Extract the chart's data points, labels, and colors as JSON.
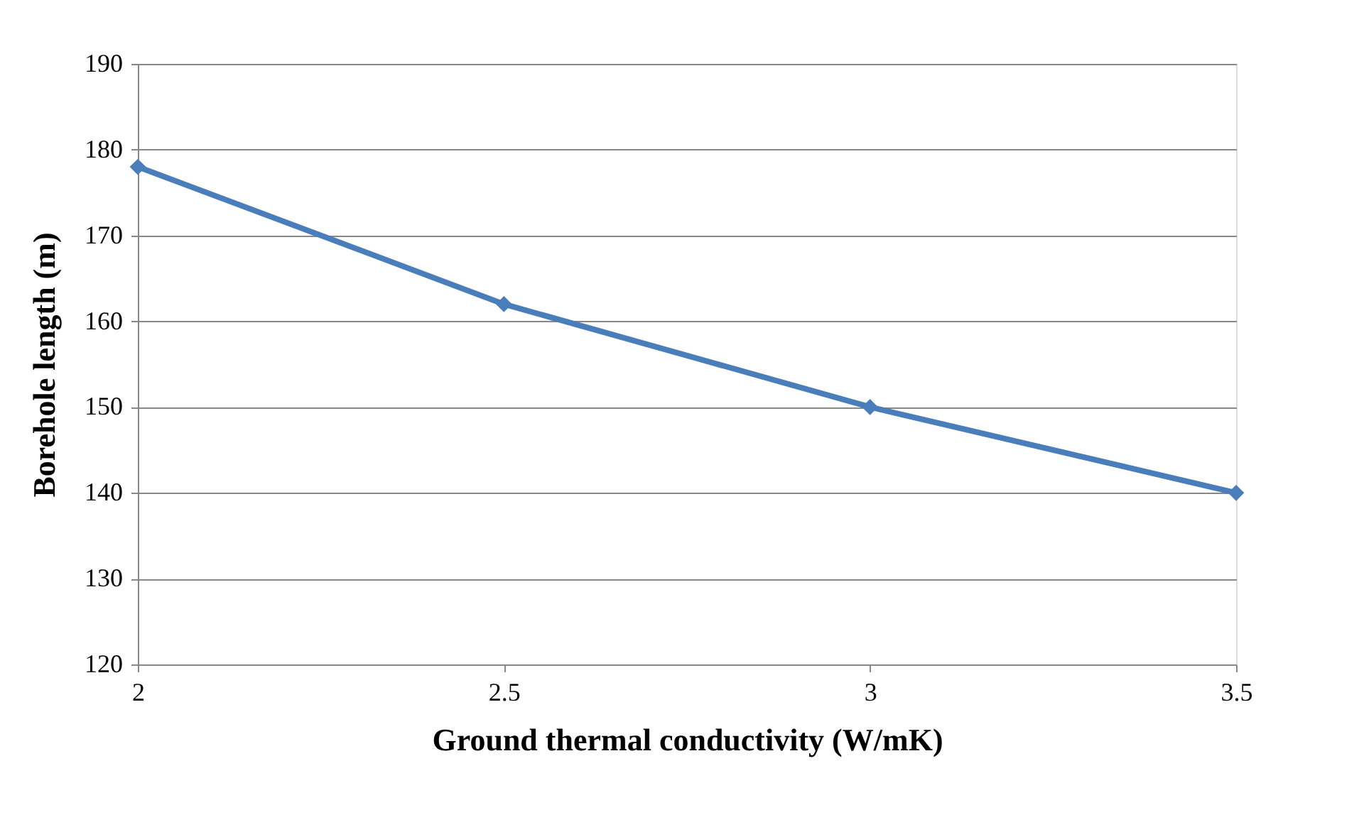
{
  "chart_data": {
    "type": "line",
    "xlabel": "Ground thermal conductivity (W/mK)",
    "ylabel": "Borehole length (m)",
    "x": [
      2,
      2.5,
      3,
      3.5
    ],
    "series": [
      {
        "color": "#4a7ebb",
        "values": [
          178,
          162,
          150,
          140
        ]
      }
    ],
    "xlim": [
      2,
      3.5
    ],
    "xticks": [
      2,
      2.5,
      3,
      3.5
    ],
    "ylim": [
      120,
      190
    ],
    "yticks": [
      120,
      130,
      140,
      150,
      160,
      170,
      180,
      190
    ],
    "grid": "y",
    "marker": "diamond",
    "line_style": "solid"
  }
}
